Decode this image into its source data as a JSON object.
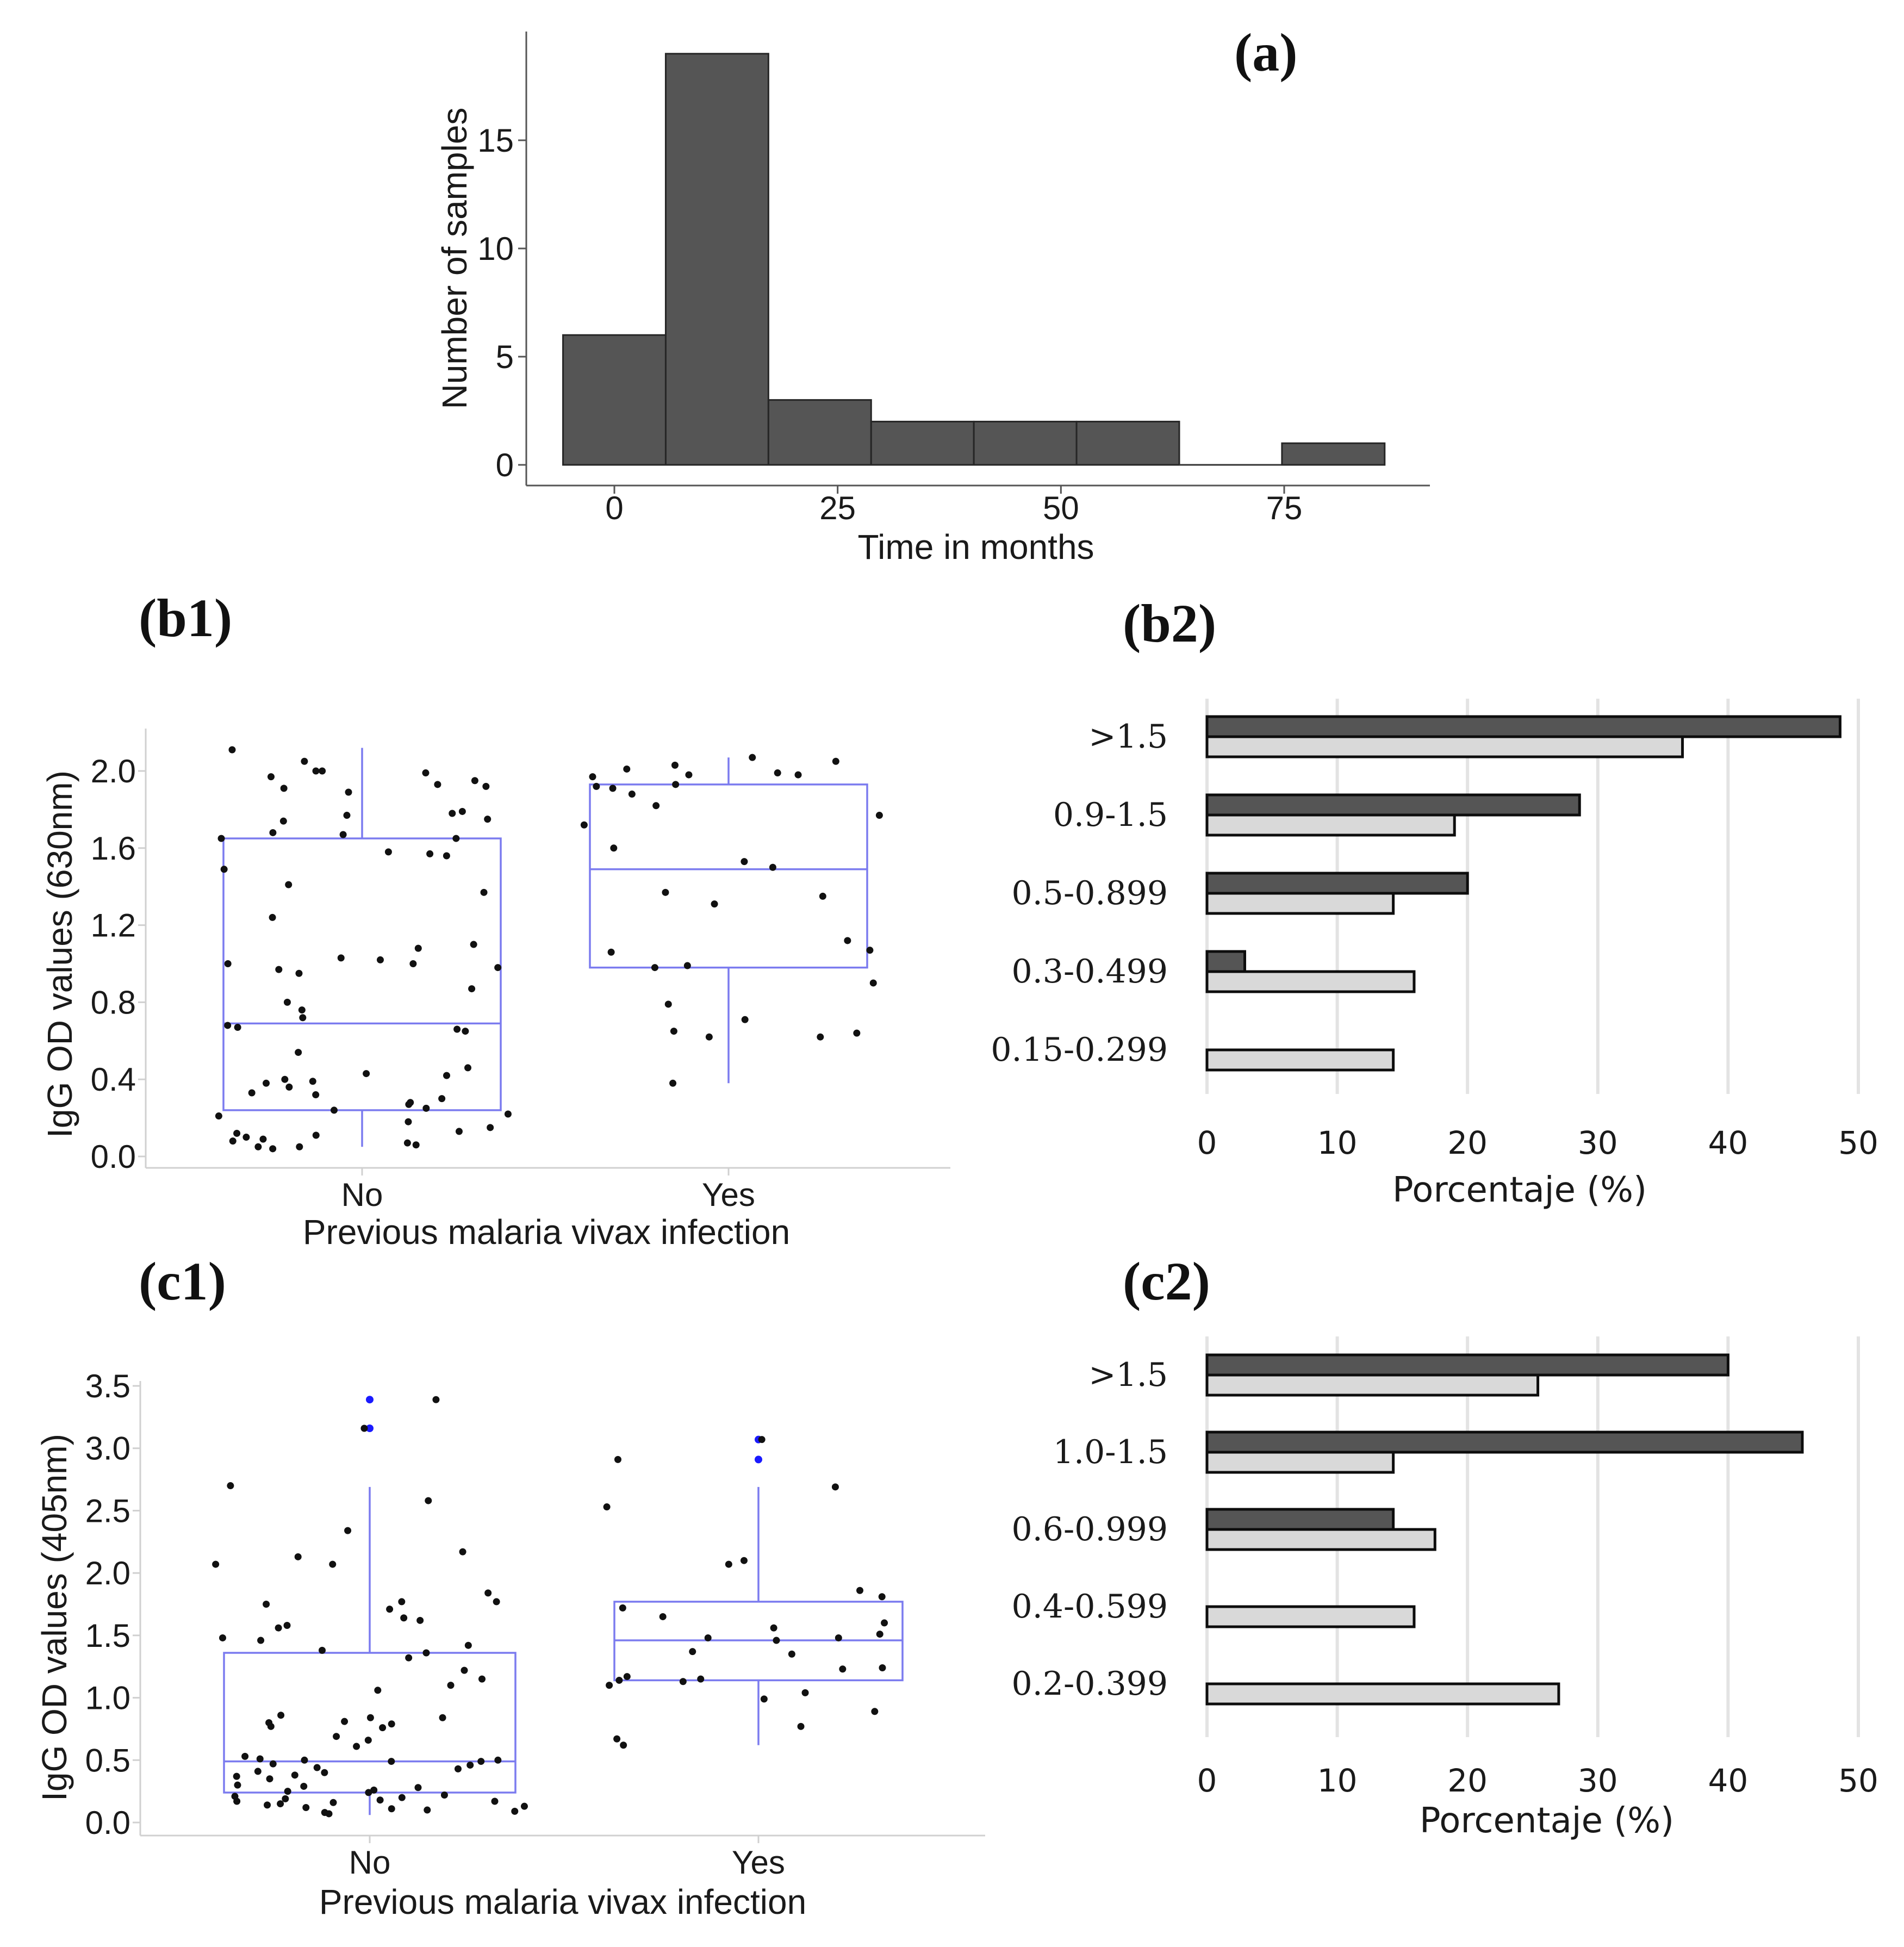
{
  "colors": {
    "hist_fill": "#555555",
    "box_stroke": "#7b7bef",
    "point": "#111111",
    "outlier": "#1a1aff",
    "bar_dark": "#555555",
    "bar_light": "#d9d9d9",
    "grid": "#e3e3e3"
  },
  "chart_data": [
    {
      "id": "a",
      "type": "bar",
      "panel_label": "(a)",
      "title": "",
      "xlabel": "Time in months",
      "ylabel": "Number of samples",
      "bin_edges": [
        -5.75,
        5.75,
        17.25,
        28.75,
        40.25,
        51.75,
        63.25,
        74.75,
        86.25
      ],
      "values": [
        6,
        19,
        3,
        2,
        2,
        2,
        0,
        1
      ],
      "xticks": [
        0,
        25,
        50,
        75
      ],
      "xtick_labels": [
        "0",
        "25",
        "50",
        "75"
      ],
      "yticks": [
        0,
        5,
        10,
        15
      ],
      "ytick_labels": [
        "0",
        "5",
        "10",
        "15"
      ],
      "xlim": [
        -10,
        91
      ],
      "ylim": [
        0,
        20
      ]
    },
    {
      "id": "b1",
      "type": "scatter",
      "subtype": "boxplot-with-jitter",
      "panel_label": "(b1)",
      "xlabel": "Previous malaria vivax infection",
      "ylabel": "IgG OD values (630nm)",
      "categories": [
        "No",
        "Yes"
      ],
      "yticks": [
        0.0,
        0.4,
        0.8,
        1.2,
        1.6,
        2.0
      ],
      "ytick_labels": [
        "0.0",
        "0.4",
        "0.8",
        "1.2",
        "1.6",
        "2.0"
      ],
      "ylim": [
        -0.05,
        2.25
      ],
      "boxes": [
        {
          "category": "No",
          "q1": 0.24,
          "median": 0.69,
          "q3": 1.65,
          "whisker_low": 0.05,
          "whisker_high": 2.12
        },
        {
          "category": "Yes",
          "q1": 0.98,
          "median": 1.49,
          "q3": 1.93,
          "whisker_low": 0.38,
          "whisker_high": 2.07
        }
      ],
      "points": [
        {
          "category": "No",
          "y": [
            2.11,
            2.05,
            2.0,
            2.0,
            1.99,
            1.97,
            1.95,
            1.93,
            1.92,
            1.91,
            1.89,
            1.79,
            1.78,
            1.77,
            1.75,
            1.74,
            1.68,
            1.67,
            1.65,
            1.65,
            1.58,
            1.57,
            1.56,
            1.49,
            1.41,
            1.37,
            1.24,
            1.1,
            1.08,
            1.03,
            1.02,
            1.0,
            1.0,
            0.98,
            0.97,
            0.95,
            0.87,
            0.8,
            0.76,
            0.72,
            0.68,
            0.67,
            0.66,
            0.65,
            0.54,
            0.46,
            0.43,
            0.42,
            0.4,
            0.39,
            0.38,
            0.36,
            0.33,
            0.32,
            0.3,
            0.28,
            0.27,
            0.25,
            0.24,
            0.22,
            0.21,
            0.18,
            0.15,
            0.13,
            0.12,
            0.11,
            0.1,
            0.09,
            0.08,
            0.07,
            0.06,
            0.05,
            0.05,
            0.04
          ]
        },
        {
          "category": "Yes",
          "y": [
            2.07,
            2.05,
            2.03,
            2.01,
            1.99,
            1.98,
            1.98,
            1.97,
            1.93,
            1.92,
            1.91,
            1.88,
            1.82,
            1.77,
            1.72,
            1.6,
            1.53,
            1.5,
            1.37,
            1.35,
            1.31,
            1.12,
            1.07,
            1.06,
            0.99,
            0.98,
            0.9,
            0.79,
            0.71,
            0.65,
            0.64,
            0.62,
            0.62,
            0.38
          ]
        }
      ]
    },
    {
      "id": "b2",
      "type": "bar",
      "orientation": "horizontal",
      "panel_label": "(b2)",
      "xlabel": "Porcentaje (%)",
      "ylabel": "",
      "categories": [
        ">1.5",
        "0.9-1.5",
        "0.5-0.899",
        "0.3-0.499",
        "0.15-0.299"
      ],
      "series": [
        {
          "name": "dark",
          "values": [
            48.6,
            28.6,
            20.0,
            2.9,
            0
          ]
        },
        {
          "name": "light",
          "values": [
            36.5,
            19.0,
            14.3,
            15.9,
            14.3
          ]
        }
      ],
      "xticks": [
        0,
        10,
        20,
        30,
        40,
        50
      ],
      "xtick_labels": [
        "0",
        "10",
        "20",
        "30",
        "40",
        "50"
      ],
      "xlim": [
        0,
        50
      ]
    },
    {
      "id": "c1",
      "type": "scatter",
      "subtype": "boxplot-with-jitter",
      "panel_label": "(c1)",
      "xlabel": "Previous malaria vivax infection",
      "ylabel": "IgG OD values (405nm)",
      "categories": [
        "No",
        "Yes"
      ],
      "yticks": [
        0.0,
        0.5,
        1.0,
        1.5,
        2.0,
        2.5,
        3.0,
        3.5
      ],
      "ytick_labels": [
        "0.0",
        "0.5",
        "1.0",
        "1.5",
        "2.0",
        "2.5",
        "3.0",
        "3.5"
      ],
      "ylim": [
        -0.1,
        3.55
      ],
      "boxes": [
        {
          "category": "No",
          "q1": 0.24,
          "median": 0.49,
          "q3": 1.36,
          "whisker_low": 0.06,
          "whisker_high": 2.69,
          "outliers": [
            3.39,
            3.16
          ]
        },
        {
          "category": "Yes",
          "q1": 1.14,
          "median": 1.46,
          "q3": 1.77,
          "whisker_low": 0.62,
          "whisker_high": 2.69,
          "outliers": [
            3.07,
            2.91
          ]
        }
      ],
      "points": [
        {
          "category": "No",
          "y": [
            3.39,
            3.16,
            2.7,
            2.58,
            2.34,
            2.17,
            2.13,
            2.07,
            2.07,
            1.84,
            1.77,
            1.77,
            1.75,
            1.71,
            1.64,
            1.62,
            1.58,
            1.56,
            1.48,
            1.46,
            1.42,
            1.38,
            1.36,
            1.32,
            1.22,
            1.15,
            1.1,
            1.06,
            0.86,
            0.84,
            0.84,
            0.81,
            0.8,
            0.79,
            0.77,
            0.76,
            0.69,
            0.66,
            0.61,
            0.53,
            0.51,
            0.5,
            0.5,
            0.49,
            0.49,
            0.47,
            0.46,
            0.44,
            0.43,
            0.41,
            0.4,
            0.38,
            0.37,
            0.35,
            0.3,
            0.29,
            0.28,
            0.26,
            0.25,
            0.24,
            0.22,
            0.21,
            0.2,
            0.19,
            0.18,
            0.17,
            0.17,
            0.16,
            0.15,
            0.14,
            0.13,
            0.12,
            0.11,
            0.1,
            0.09,
            0.08,
            0.07
          ]
        },
        {
          "category": "Yes",
          "y": [
            3.07,
            2.91,
            2.69,
            2.53,
            2.1,
            2.07,
            1.86,
            1.81,
            1.72,
            1.65,
            1.6,
            1.56,
            1.51,
            1.48,
            1.48,
            1.46,
            1.37,
            1.35,
            1.24,
            1.23,
            1.17,
            1.15,
            1.14,
            1.13,
            1.1,
            1.04,
            0.99,
            0.89,
            0.77,
            0.67,
            0.62
          ]
        }
      ]
    },
    {
      "id": "c2",
      "type": "bar",
      "orientation": "horizontal",
      "panel_label": "(c2)",
      "xlabel": "Porcentaje (%)",
      "ylabel": "",
      "categories": [
        ">1.5",
        "1.0-1.5",
        "0.6-0.999",
        "0.4-0.599",
        "0.2-0.399"
      ],
      "series": [
        {
          "name": "dark",
          "values": [
            40.0,
            45.7,
            14.3,
            0,
            0
          ]
        },
        {
          "name": "light",
          "values": [
            25.4,
            14.3,
            17.5,
            15.9,
            27.0
          ]
        }
      ],
      "xticks": [
        0,
        10,
        20,
        30,
        40,
        50
      ],
      "xtick_labels": [
        "0",
        "10",
        "20",
        "30",
        "40",
        "50"
      ],
      "xlim": [
        0,
        50
      ]
    }
  ]
}
